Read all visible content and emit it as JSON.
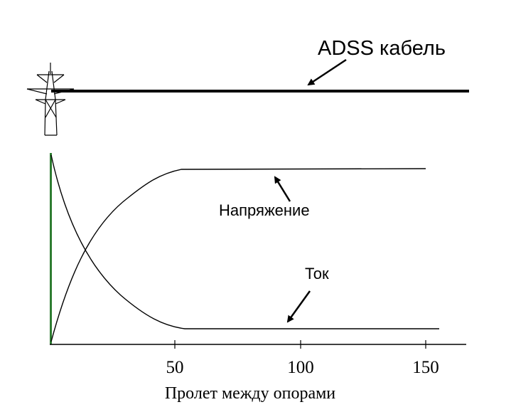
{
  "cable_label": "ADSS кабель",
  "voltage_label": "Напряжение",
  "current_label": "Ток",
  "x_axis": {
    "label": "Пролет между опорами",
    "ticks": [
      "50",
      "100",
      "150"
    ]
  },
  "colors": {
    "tower_marker": "#2e7d32",
    "line": "#000000"
  },
  "icons": [
    "transmission-tower-icon"
  ]
}
